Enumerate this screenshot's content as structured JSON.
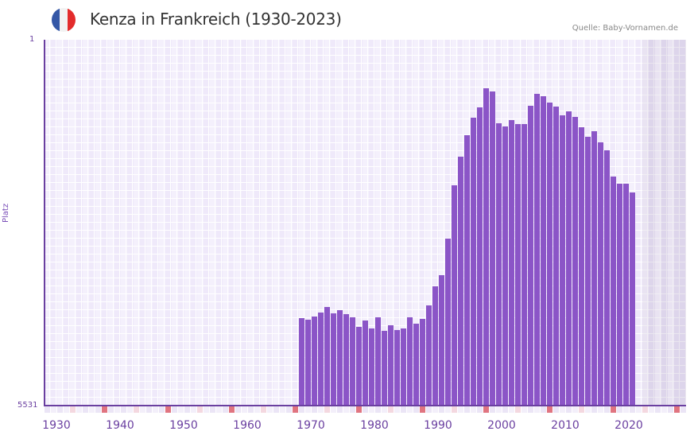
{
  "header": {
    "title": "Kenza in Frankreich (1930-2023)",
    "source": "Quelle: Baby-Vornamen.de",
    "flag_colors": [
      "#3457a6",
      "#f2f2f2",
      "#e32b2b"
    ]
  },
  "colors": {
    "bar": "#8b55c7",
    "axis": "#6a3fa0",
    "grid_bg": "#efe9fa",
    "decade_tick": "#e07480",
    "half_decade_tick": "#f4d8e0",
    "future_region": "#e2dcea"
  },
  "chart_data": {
    "type": "bar",
    "title": "Kenza in Frankreich (1930-2023)",
    "xlabel": "",
    "ylabel": "Platz",
    "y_inverted": true,
    "ylim": [
      1,
      5531
    ],
    "y_ticks": [
      "1",
      "5531"
    ],
    "x_range": [
      1930,
      2030
    ],
    "x_ticks": [
      "1930",
      "1940",
      "1950",
      "1960",
      "1970",
      "1980",
      "1990",
      "2000",
      "2010",
      "2020"
    ],
    "grid": true,
    "legend": null,
    "future_shaded_from": 2024,
    "categories": [
      1970,
      1971,
      1972,
      1973,
      1974,
      1975,
      1976,
      1977,
      1978,
      1979,
      1980,
      1981,
      1982,
      1983,
      1984,
      1985,
      1986,
      1987,
      1988,
      1989,
      1990,
      1991,
      1992,
      1993,
      1994,
      1995,
      1996,
      1997,
      1998,
      1999,
      2000,
      2001,
      2002,
      2003,
      2004,
      2005,
      2006,
      2007,
      2008,
      2009,
      2010,
      2011,
      2012,
      2013,
      2014,
      2015,
      2016,
      2017,
      2018,
      2019,
      2020,
      2021,
      2022
    ],
    "values": [
      4208,
      4232,
      4184,
      4124,
      4040,
      4136,
      4088,
      4148,
      4196,
      4341,
      4244,
      4364,
      4196,
      4401,
      4316,
      4389,
      4364,
      4196,
      4292,
      4220,
      4016,
      3727,
      3559,
      3006,
      2201,
      1768,
      1443,
      1178,
      1022,
      734,
      782,
      1263,
      1311,
      1215,
      1275,
      1275,
      999,
      818,
      854,
      950,
      1010,
      1142,
      1082,
      1166,
      1323,
      1467,
      1383,
      1551,
      1672,
      2069,
      2177,
      2177,
      2309
    ]
  },
  "axes": {
    "y_top_label": "1",
    "y_bottom_label": "5531",
    "y_title": "Platz"
  }
}
